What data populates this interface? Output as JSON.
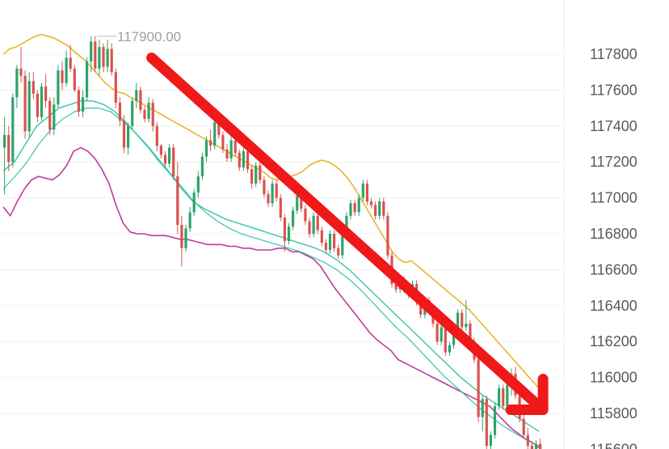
{
  "chart_data": {
    "type": "candlestick",
    "title": "",
    "xlabel": "",
    "ylabel": "",
    "ylim": [
      115600,
      117950
    ],
    "y_ticks": [
      117800,
      117600,
      117400,
      117200,
      117000,
      116800,
      116600,
      116400,
      116200,
      116000,
      115800,
      115600
    ],
    "y_tick_labels": [
      "117800",
      "117600",
      "117400",
      "117200",
      "117000",
      "116800",
      "116600",
      "116400",
      "116200",
      "116000",
      "115800",
      "115600"
    ],
    "grid": true,
    "annotations": [
      {
        "type": "label",
        "text": "117900.00",
        "value": 117900
      },
      {
        "type": "arrow",
        "direction": "down-right",
        "from": {
          "bar": 36,
          "price": 117780
        },
        "to": {
          "bar": 131,
          "price": 115820
        }
      }
    ],
    "colors": {
      "up": "#2ea36b",
      "down": "#d9534f",
      "bollinger_upper": "#e8b62b",
      "bollinger_lower": "#c13a9a",
      "moving_average": "#3ac4a8",
      "arrow": "#f01818",
      "grid": "#f0f0f0",
      "axis_text": "#555a61",
      "peak_text": "#9aa0a6"
    },
    "candles_ohlc": [
      [
        117280,
        117450,
        117020,
        117350
      ],
      [
        117350,
        117400,
        117150,
        117200
      ],
      [
        117200,
        117580,
        117170,
        117560
      ],
      [
        117560,
        117740,
        117500,
        117720
      ],
      [
        117720,
        117840,
        117640,
        117680
      ],
      [
        117680,
        117710,
        117330,
        117370
      ],
      [
        117370,
        117700,
        117340,
        117650
      ],
      [
        117650,
        117700,
        117550,
        117580
      ],
      [
        117580,
        117600,
        117420,
        117450
      ],
      [
        117450,
        117640,
        117430,
        117620
      ],
      [
        117620,
        117690,
        117500,
        117540
      ],
      [
        117540,
        117560,
        117350,
        117380
      ],
      [
        117380,
        117560,
        117350,
        117520
      ],
      [
        117520,
        117740,
        117500,
        117710
      ],
      [
        117710,
        117760,
        117600,
        117640
      ],
      [
        117640,
        117820,
        117620,
        117780
      ],
      [
        117780,
        117850,
        117700,
        117720
      ],
      [
        117720,
        117740,
        117590,
        117600
      ],
      [
        117600,
        117620,
        117450,
        117480
      ],
      [
        117480,
        117600,
        117450,
        117560
      ],
      [
        117560,
        117780,
        117540,
        117760
      ],
      [
        117760,
        117900,
        117700,
        117870
      ],
      [
        117870,
        117900,
        117700,
        117720
      ],
      [
        117720,
        117880,
        117680,
        117840
      ],
      [
        117840,
        117860,
        117700,
        117730
      ],
      [
        117730,
        117880,
        117700,
        117830
      ],
      [
        117830,
        117860,
        117680,
        117700
      ],
      [
        117700,
        117720,
        117500,
        117530
      ],
      [
        117530,
        117560,
        117400,
        117430
      ],
      [
        117430,
        117460,
        117250,
        117280
      ],
      [
        117280,
        117420,
        117240,
        117400
      ],
      [
        117400,
        117560,
        117380,
        117540
      ],
      [
        117540,
        117640,
        117500,
        117600
      ],
      [
        117600,
        117620,
        117470,
        117490
      ],
      [
        117490,
        117510,
        117420,
        117440
      ],
      [
        117440,
        117560,
        117420,
        117530
      ],
      [
        117530,
        117550,
        117370,
        117400
      ],
      [
        117400,
        117420,
        117260,
        117290
      ],
      [
        117290,
        117300,
        117220,
        117240
      ],
      [
        117240,
        117260,
        117170,
        117190
      ],
      [
        117190,
        117300,
        117170,
        117280
      ],
      [
        117280,
        117300,
        117100,
        117120
      ],
      [
        117120,
        117200,
        116800,
        116850
      ],
      [
        116850,
        116900,
        116620,
        116720
      ],
      [
        116720,
        116850,
        116700,
        116830
      ],
      [
        116830,
        116950,
        116810,
        116920
      ],
      [
        116920,
        117050,
        116900,
        117030
      ],
      [
        117030,
        117150,
        117000,
        117120
      ],
      [
        117120,
        117250,
        117100,
        117230
      ],
      [
        117230,
        117340,
        117200,
        117320
      ],
      [
        117320,
        117380,
        117260,
        117290
      ],
      [
        117290,
        117450,
        117270,
        117420
      ],
      [
        117420,
        117440,
        117330,
        117350
      ],
      [
        117350,
        117370,
        117250,
        117270
      ],
      [
        117270,
        117300,
        117200,
        117220
      ],
      [
        117220,
        117350,
        117200,
        117320
      ],
      [
        117320,
        117340,
        117230,
        117250
      ],
      [
        117250,
        117270,
        117150,
        117170
      ],
      [
        117170,
        117280,
        117150,
        117260
      ],
      [
        117260,
        117280,
        117140,
        117160
      ],
      [
        117160,
        117180,
        117050,
        117080
      ],
      [
        117080,
        117200,
        117060,
        117180
      ],
      [
        117180,
        117200,
        117080,
        117100
      ],
      [
        117100,
        117120,
        117000,
        117020
      ],
      [
        117020,
        117040,
        116950,
        116970
      ],
      [
        116970,
        117100,
        116950,
        117080
      ],
      [
        117080,
        117100,
        116980,
        117000
      ],
      [
        117000,
        117020,
        116870,
        116890
      ],
      [
        116890,
        116910,
        116700,
        116760
      ],
      [
        116760,
        116860,
        116740,
        116840
      ],
      [
        116840,
        116950,
        116820,
        116930
      ],
      [
        116930,
        117030,
        116910,
        117010
      ],
      [
        117010,
        117030,
        116920,
        116940
      ],
      [
        116940,
        116960,
        116850,
        116870
      ],
      [
        116870,
        116890,
        116780,
        116800
      ],
      [
        116800,
        116920,
        116780,
        116900
      ],
      [
        116900,
        116920,
        116800,
        116820
      ],
      [
        116820,
        116840,
        116730,
        116750
      ],
      [
        116750,
        116770,
        116690,
        116710
      ],
      [
        116710,
        116820,
        116690,
        116800
      ],
      [
        116800,
        116820,
        116700,
        116720
      ],
      [
        116720,
        116740,
        116660,
        116680
      ],
      [
        116680,
        116830,
        116660,
        116810
      ],
      [
        116810,
        116920,
        116790,
        116900
      ],
      [
        116900,
        116990,
        116880,
        116970
      ],
      [
        116970,
        116990,
        116900,
        116920
      ],
      [
        116920,
        117020,
        116900,
        117000
      ],
      [
        117000,
        117100,
        116980,
        117080
      ],
      [
        117080,
        117100,
        116960,
        116980
      ],
      [
        116980,
        117000,
        116940,
        116960
      ],
      [
        116960,
        116980,
        116880,
        116900
      ],
      [
        116900,
        117000,
        116880,
        116980
      ],
      [
        116980,
        117000,
        116880,
        116900
      ],
      [
        116900,
        116920,
        116660,
        116680
      ],
      [
        116680,
        116700,
        116500,
        116520
      ],
      [
        116520,
        116550,
        116470,
        116490
      ],
      [
        116490,
        116560,
        116470,
        116540
      ],
      [
        116540,
        116560,
        116470,
        116490
      ],
      [
        116490,
        116510,
        116440,
        116460
      ],
      [
        116460,
        116540,
        116440,
        116520
      ],
      [
        116520,
        116540,
        116400,
        116420
      ],
      [
        116420,
        116440,
        116330,
        116350
      ],
      [
        116350,
        116450,
        116330,
        116430
      ],
      [
        116430,
        116450,
        116360,
        116380
      ],
      [
        116380,
        116400,
        116280,
        116300
      ],
      [
        116300,
        116320,
        116180,
        116200
      ],
      [
        116200,
        116300,
        116180,
        116280
      ],
      [
        116280,
        116300,
        116120,
        116140
      ],
      [
        116140,
        116200,
        116120,
        116180
      ],
      [
        116180,
        116280,
        116160,
        116260
      ],
      [
        116260,
        116380,
        116240,
        116360
      ],
      [
        116360,
        116380,
        116260,
        116280
      ],
      [
        116280,
        116430,
        116260,
        116300
      ],
      [
        116300,
        116320,
        116180,
        116200
      ],
      [
        116200,
        116220,
        116080,
        116100
      ],
      [
        116100,
        116120,
        115750,
        115780
      ],
      [
        115780,
        115900,
        115700,
        115880
      ],
      [
        115880,
        115900,
        115600,
        115620
      ],
      [
        115620,
        115700,
        115560,
        115680
      ],
      [
        115680,
        115860,
        115660,
        115840
      ],
      [
        115840,
        115960,
        115820,
        115940
      ],
      [
        115940,
        115960,
        115820,
        115840
      ],
      [
        115840,
        115980,
        115820,
        115960
      ],
      [
        115960,
        116050,
        115900,
        116020
      ],
      [
        116020,
        116060,
        115880,
        115900
      ],
      [
        115900,
        115920,
        115750,
        115770
      ],
      [
        115770,
        115800,
        115660,
        115680
      ],
      [
        115680,
        115720,
        115600,
        115620
      ],
      [
        115620,
        115640,
        115560,
        115580
      ],
      [
        115580,
        115650,
        115560,
        115630
      ],
      [
        115630,
        115660,
        115580,
        115600
      ]
    ],
    "bollinger_upper": [
      117800,
      117830,
      117840,
      117860,
      117880,
      117900,
      117910,
      117900,
      117890,
      117870,
      117850,
      117820,
      117790,
      117760,
      117720,
      117680,
      117640,
      117610,
      117590,
      117580,
      117560,
      117540,
      117520,
      117500,
      117480,
      117460,
      117440,
      117420,
      117400,
      117380,
      117360,
      117340,
      117320,
      117300,
      117280,
      117260,
      117240,
      117220,
      117200,
      117180,
      117160,
      117140,
      117110,
      117100,
      117110,
      117120,
      117130,
      117150,
      117180,
      117200,
      117210,
      117200,
      117180,
      117150,
      117110,
      117060,
      117000,
      116940,
      116880,
      116820,
      116760,
      116700,
      116660,
      116640,
      116650,
      116620,
      116590,
      116560,
      116530,
      116500,
      116470,
      116440,
      116410,
      116380,
      116340,
      116300,
      116260,
      116220,
      116180,
      116140,
      116100,
      116060,
      116020,
      115980,
      115940
    ],
    "bollinger_lower": [
      116950,
      116900,
      116980,
      117050,
      117100,
      117120,
      117110,
      117100,
      117130,
      117180,
      117260,
      117280,
      117260,
      117220,
      117160,
      117080,
      116960,
      116860,
      116810,
      116800,
      116800,
      116790,
      116790,
      116790,
      116780,
      116770,
      116770,
      116760,
      116750,
      116740,
      116740,
      116740,
      116730,
      116730,
      116720,
      116720,
      116710,
      116710,
      116710,
      116720,
      116720,
      116700,
      116700,
      116680,
      116660,
      116620,
      116560,
      116500,
      116450,
      116400,
      116350,
      116300,
      116250,
      116210,
      116180,
      116150,
      116100,
      116080,
      116060,
      116040,
      116020,
      116000,
      115980,
      115960,
      115940,
      115920,
      115900,
      115880,
      115860,
      115840,
      115800,
      115760,
      115720,
      115690,
      115660,
      115640,
      115610
    ],
    "moving_average_1": [
      117150,
      117200,
      117300,
      117400,
      117450,
      117500,
      117520,
      117540,
      117540,
      117520,
      117480,
      117420,
      117350,
      117280,
      117200,
      117130,
      117050,
      116980,
      116940,
      116910,
      116880,
      116860,
      116840,
      116820,
      116800,
      116780,
      116760,
      116740,
      116720,
      116690,
      116650,
      116600,
      116540,
      116480,
      116420,
      116360,
      116300,
      116240,
      116180,
      116120,
      116060,
      116000,
      115950,
      115900,
      115860,
      115820,
      115780,
      115740,
      115700
    ],
    "moving_average_2": [
      117050,
      117120,
      117200,
      117300,
      117380,
      117440,
      117480,
      117500,
      117500,
      117480,
      117430,
      117370,
      117300,
      117220,
      117140,
      117060,
      116980,
      116920,
      116870,
      116830,
      116800,
      116780,
      116760,
      116740,
      116720,
      116700,
      116670,
      116640,
      116600,
      116550,
      116490,
      116420,
      116350,
      116280,
      116220,
      116150,
      116080,
      116010,
      115950,
      115890,
      115830,
      115780,
      115730,
      115690,
      115650,
      115620
    ]
  }
}
